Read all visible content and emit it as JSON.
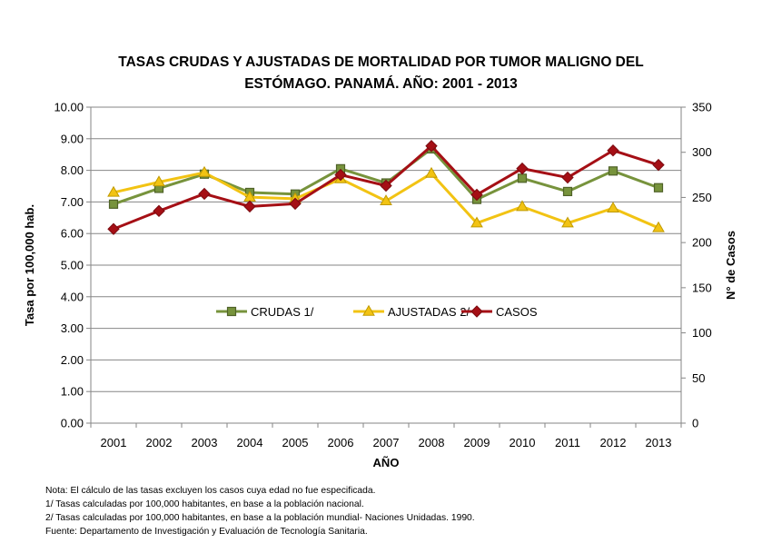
{
  "chart_data": {
    "type": "line",
    "title_line1": "TASAS CRUDAS Y AJUSTADAS DE MORTALIDAD POR TUMOR MALIGNO DEL",
    "title_line2": "ESTÓMAGO. PANAMÁ. AÑO: 2001 - 2013",
    "xlabel": "AÑO",
    "ylabel": "Tasa por 100,000 hab.",
    "y2label": "N° de Casos",
    "categories": [
      "2001",
      "2002",
      "2003",
      "2004",
      "2005",
      "2006",
      "2007",
      "2008",
      "2009",
      "2010",
      "2011",
      "2012",
      "2013"
    ],
    "ylim": [
      0,
      10
    ],
    "y2lim": [
      0,
      350
    ],
    "yticks": [
      "0.00",
      "1.00",
      "2.00",
      "3.00",
      "4.00",
      "5.00",
      "6.00",
      "7.00",
      "8.00",
      "9.00",
      "10.00"
    ],
    "y2ticks": [
      "0",
      "50",
      "100",
      "150",
      "200",
      "250",
      "300",
      "350"
    ],
    "grid": true,
    "legend_position": "center",
    "series": [
      {
        "name": "CRUDAS 1/",
        "axis": "left",
        "color": "#77933c",
        "marker": "square",
        "values": [
          6.93,
          7.43,
          7.88,
          7.3,
          7.25,
          8.05,
          7.6,
          8.68,
          7.08,
          7.75,
          7.33,
          7.98,
          7.45
        ]
      },
      {
        "name": "AJUSTADAS 2/",
        "axis": "left",
        "color": "#f2c313",
        "marker": "triangle",
        "values": [
          7.3,
          7.63,
          7.93,
          7.15,
          7.1,
          7.73,
          7.03,
          7.9,
          6.33,
          6.85,
          6.33,
          6.8,
          6.18
        ]
      },
      {
        "name": "CASOS",
        "axis": "right",
        "color": "#a50f15",
        "marker": "diamond",
        "values": [
          215,
          235,
          254,
          240,
          243,
          275,
          263,
          307,
          253,
          282,
          272,
          302,
          286
        ]
      }
    ]
  },
  "notes": [
    "Nota: El cálculo de las tasas excluyen los casos cuya edad no fue especificada.",
    "1/ Tasas calculadas por 100,000  habitantes, en base a la población nacional.",
    "2/ Tasas calculadas por 100,000 habitantes, en base a la población mundial- Naciones  Unidadas. 1990.",
    "Fuente: Departamento de Investigación y Evaluación de Tecnología  Sanitaria."
  ]
}
